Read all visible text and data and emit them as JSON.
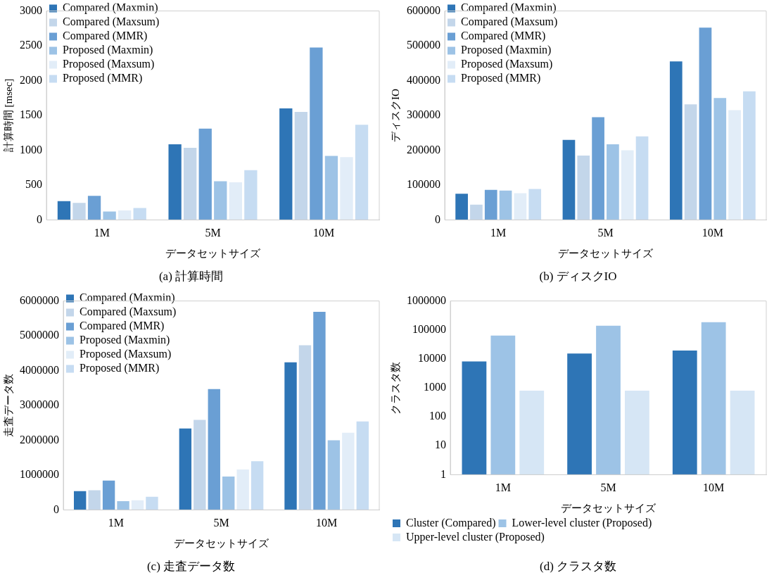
{
  "chart_data": [
    {
      "type": "bar",
      "title": "(a) 計算時間",
      "xlabel": "データセットサイズ",
      "ylabel": "計算時間 [msec]",
      "categories": [
        "1M",
        "5M",
        "10M"
      ],
      "series": [
        {
          "name": "Compared (Maxmin)",
          "color": "#2e75b6",
          "values": [
            270,
            1085,
            1600
          ]
        },
        {
          "name": "Compared (Maxsum)",
          "color": "#c3d6ea",
          "values": [
            245,
            1035,
            1550
          ]
        },
        {
          "name": "Compared (MMR)",
          "color": "#6a9fd4",
          "values": [
            345,
            1310,
            2475
          ]
        },
        {
          "name": "Proposed (Maxmin)",
          "color": "#9dc3e6",
          "values": [
            120,
            555,
            920
          ]
        },
        {
          "name": "Proposed (Maxsum)",
          "color": "#e2edf8",
          "values": [
            135,
            540,
            900
          ]
        },
        {
          "name": "Proposed (MMR)",
          "color": "#c6dcf2",
          "values": [
            170,
            715,
            1365
          ]
        }
      ],
      "ylim": [
        0,
        3000
      ],
      "yticks": [
        0,
        500,
        1000,
        1500,
        2000,
        2500,
        3000
      ],
      "grid": false,
      "legend": "top left"
    },
    {
      "type": "bar",
      "title": "(b) ディスクIO",
      "xlabel": "データセットサイズ",
      "ylabel": "ディスクIO",
      "categories": [
        "1M",
        "5M",
        "10M"
      ],
      "series": [
        {
          "name": "Compared (Maxmin)",
          "color": "#2e75b6",
          "values": [
            75000,
            230000,
            455000
          ]
        },
        {
          "name": "Compared (Maxsum)",
          "color": "#c3d6ea",
          "values": [
            44000,
            185000,
            332000
          ]
        },
        {
          "name": "Compared (MMR)",
          "color": "#6a9fd4",
          "values": [
            86000,
            295000,
            552000
          ]
        },
        {
          "name": "Proposed (Maxmin)",
          "color": "#9dc3e6",
          "values": [
            84000,
            217000,
            350000
          ]
        },
        {
          "name": "Proposed (Maxsum)",
          "color": "#e2edf8",
          "values": [
            76500,
            200000,
            315000
          ]
        },
        {
          "name": "Proposed (MMR)",
          "color": "#c6dcf2",
          "values": [
            89000,
            240000,
            369000
          ]
        }
      ],
      "ylim": [
        0,
        600000
      ],
      "yticks": [
        0,
        100000,
        200000,
        300000,
        400000,
        500000,
        600000
      ],
      "grid": false,
      "legend": "top left"
    },
    {
      "type": "bar",
      "title": "(c) 走査データ数",
      "xlabel": "データセットサイズ",
      "ylabel": "走査データ数",
      "categories": [
        "1M",
        "5M",
        "10M"
      ],
      "series": [
        {
          "name": "Compared (Maxmin)",
          "color": "#2e75b6",
          "values": [
            540000,
            2340000,
            4240000
          ]
        },
        {
          "name": "Compared (Maxsum)",
          "color": "#c3d6ea",
          "values": [
            565000,
            2585000,
            4730000
          ]
        },
        {
          "name": "Compared (MMR)",
          "color": "#6a9fd4",
          "values": [
            840000,
            3470000,
            5690000
          ]
        },
        {
          "name": "Proposed (Maxmin)",
          "color": "#9dc3e6",
          "values": [
            250000,
            960000,
            2000000
          ]
        },
        {
          "name": "Proposed (Maxsum)",
          "color": "#e2edf8",
          "values": [
            275000,
            1160000,
            2215000
          ]
        },
        {
          "name": "Proposed (MMR)",
          "color": "#c6dcf2",
          "values": [
            375000,
            1400000,
            2540000
          ]
        }
      ],
      "ylim": [
        0,
        6000000
      ],
      "yticks": [
        0,
        1000000,
        2000000,
        3000000,
        4000000,
        5000000,
        6000000
      ],
      "grid": false,
      "legend": "top left"
    },
    {
      "type": "bar",
      "title": "(d) クラスタ数",
      "xlabel": "データセットサイズ",
      "ylabel": "クラスタ数",
      "categories": [
        "1M",
        "5M",
        "10M"
      ],
      "series": [
        {
          "name": "Cluster (Compared)",
          "color": "#2e75b6",
          "values": [
            8200,
            15400,
            19500
          ]
        },
        {
          "name": "Lower-level cluster (Proposed)",
          "color": "#9dc3e6",
          "values": [
            63500,
            140000,
            186000
          ]
        },
        {
          "name": "Upper-level cluster (Proposed)",
          "color": "#d6e6f5",
          "values": [
            800,
            800,
            800
          ]
        }
      ],
      "log": true,
      "ylim": [
        1,
        1000000
      ],
      "yticks": [
        1,
        10,
        100,
        1000,
        10000,
        100000,
        1000000
      ],
      "grid": false,
      "legend": "bottom left"
    }
  ]
}
